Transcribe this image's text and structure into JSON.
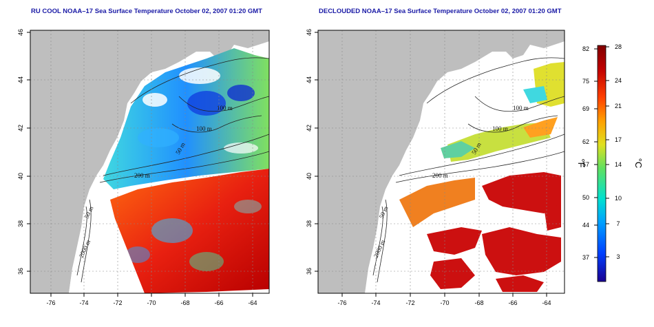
{
  "maps": [
    {
      "title": "RU COOL NOAA–17 Sea Surface Temperature October 02, 2007 01:20 GMT",
      "x_ticks": [
        "-76",
        "-74",
        "-72",
        "-70",
        "-68",
        "-66",
        "-64"
      ],
      "y_ticks": [
        "46",
        "44",
        "42",
        "40",
        "38",
        "36"
      ],
      "contour_labels": [
        "100 m",
        "100 m",
        "50 m",
        "200 m",
        "50 m",
        "2000 m"
      ]
    },
    {
      "title": "DECLOUDED NOAA–17 Sea Surface Temperature October 02, 2007 01:20 GMT",
      "x_ticks": [
        "-76",
        "-74",
        "-72",
        "-70",
        "-68",
        "-66",
        "-64"
      ],
      "y_ticks": [
        "46",
        "44",
        "42",
        "40",
        "38",
        "36"
      ],
      "contour_labels": [
        "100 m",
        "100 m",
        "50 m",
        "200 m",
        "50 m",
        "2000 m"
      ]
    }
  ],
  "colorbar": {
    "fahrenheit_ticks": [
      "82",
      "75",
      "69",
      "62",
      "57",
      "50",
      "44",
      "37"
    ],
    "celsius_ticks": [
      "28",
      "24",
      "21",
      "17",
      "14",
      "10",
      "7",
      "3"
    ],
    "fahrenheit_unit": "°F",
    "celsius_unit": "°C",
    "colors": [
      "#1a0090",
      "#0040ff",
      "#00a0ff",
      "#00e0d0",
      "#60e060",
      "#e0e020",
      "#ffa000",
      "#ff4000",
      "#c00000",
      "#800000"
    ]
  }
}
